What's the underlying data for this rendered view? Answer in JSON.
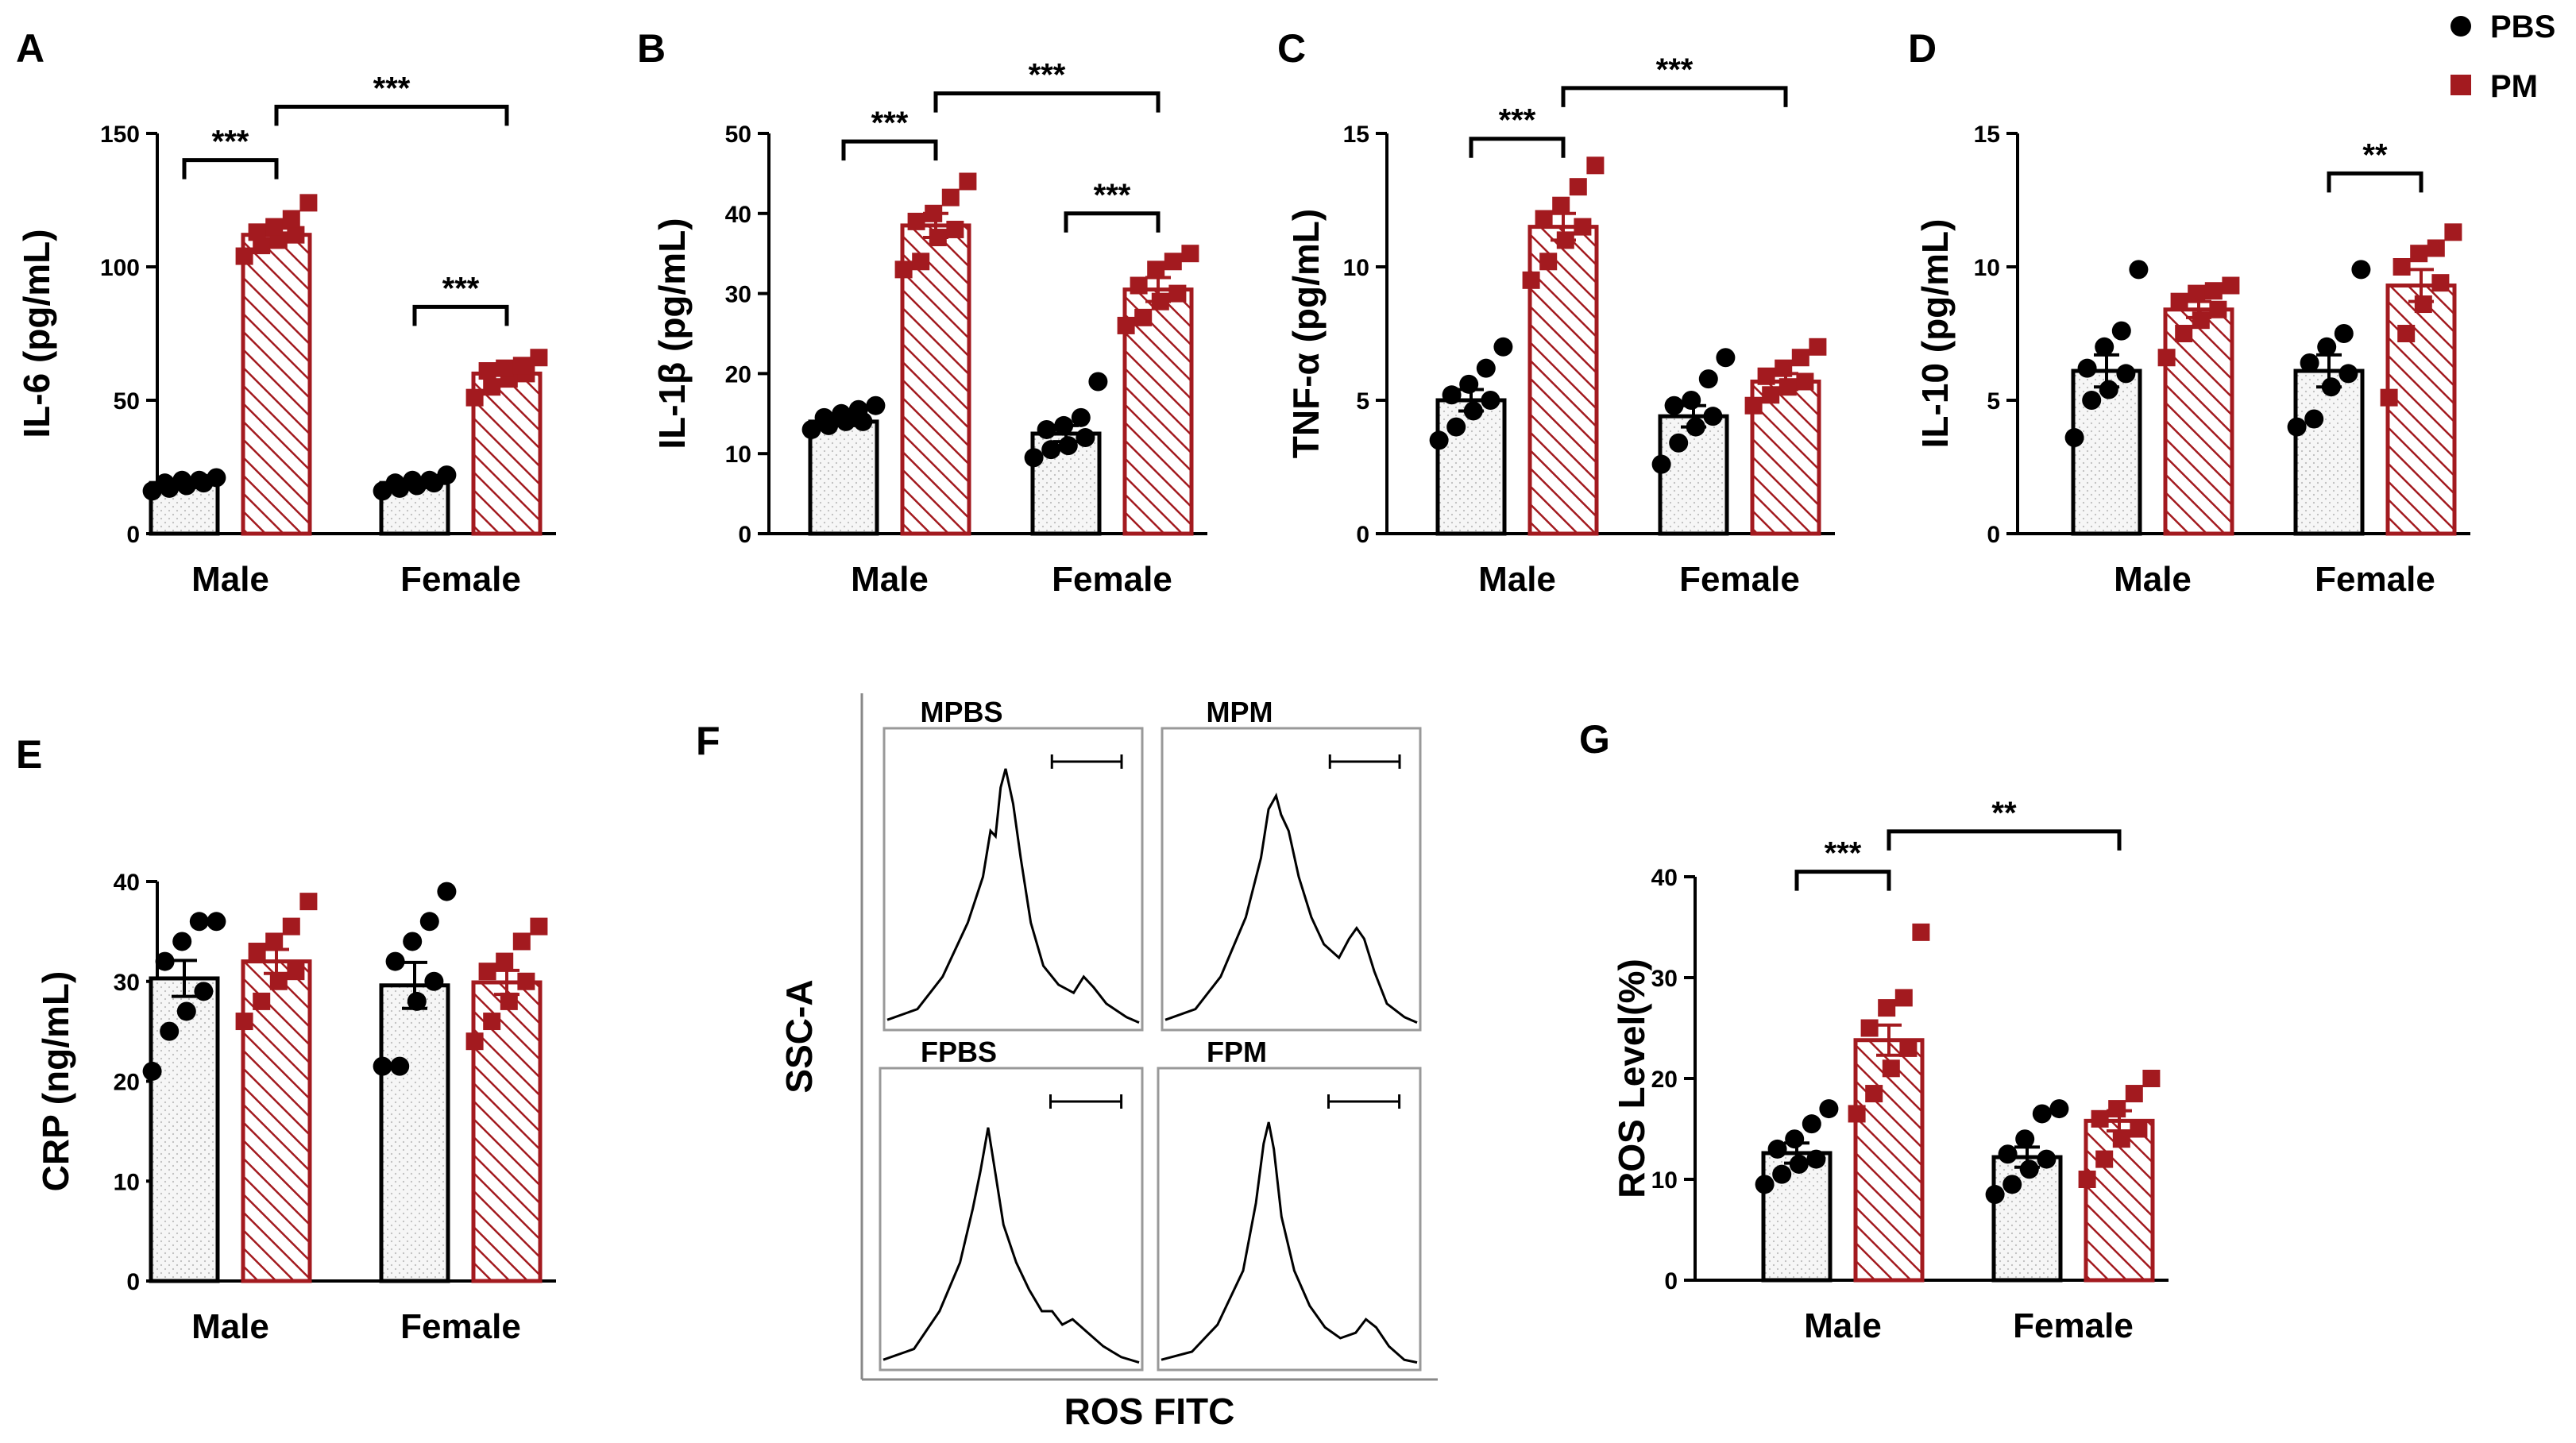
{
  "colors": {
    "pbs": "#000000",
    "pm": "#a31a1f",
    "pbs_fill": "#f2f2f2",
    "pm_hatch": "#a31a1f"
  },
  "legend": {
    "pbs": "PBS",
    "pm": "PM"
  },
  "chart_data": [
    {
      "id": "A",
      "panel": "A",
      "type": "bar",
      "ylabel": "IL-6 (pg/mL)",
      "ylim": [
        0,
        150
      ],
      "yticks": [
        0,
        50,
        100,
        150
      ],
      "categories": [
        "Male",
        "Female"
      ],
      "series": [
        {
          "name": "PBS",
          "values": [
            19,
            19
          ],
          "sem": [
            1,
            1
          ],
          "points": [
            [
              16,
              17,
              18,
              19,
              19,
              20,
              20,
              21
            ],
            [
              16,
              17,
              18,
              19,
              19,
              20,
              20,
              22
            ]
          ]
        },
        {
          "name": "PM",
          "values": [
            112,
            60
          ],
          "sem": [
            2.5,
            2.5
          ],
          "points": [
            [
              104,
              108,
              110,
              112,
              113,
              115,
              118,
              124
            ],
            [
              51,
              55,
              58,
              60,
              61,
              62,
              63,
              66
            ]
          ]
        }
      ],
      "significance": [
        {
          "from": [
            0,
            0
          ],
          "to": [
            0,
            1
          ],
          "label": "***",
          "y": 140
        },
        {
          "from": [
            1,
            0
          ],
          "to": [
            1,
            1
          ],
          "label": "***",
          "y": 85
        },
        {
          "from": [
            0,
            1
          ],
          "to": [
            1,
            1
          ],
          "label": "***",
          "y": 160
        }
      ]
    },
    {
      "id": "B",
      "panel": "B",
      "type": "bar",
      "ylabel": "IL-1β (pg/mL)",
      "ylim": [
        0,
        50
      ],
      "yticks": [
        0,
        10,
        20,
        30,
        40,
        50
      ],
      "categories": [
        "Male",
        "Female"
      ],
      "series": [
        {
          "name": "PBS",
          "values": [
            14,
            12.5
          ],
          "sem": [
            0.5,
            1.0
          ],
          "points": [
            [
              13,
              13.5,
              14,
              14,
              14.5,
              15,
              15.5,
              16
            ],
            [
              9.5,
              10.5,
              11,
              12,
              13,
              13.5,
              14.5,
              19
            ]
          ]
        },
        {
          "name": "PM",
          "values": [
            38.5,
            30.5
          ],
          "sem": [
            1.5,
            1.5
          ],
          "points": [
            [
              33,
              34,
              37,
              38,
              39,
              40,
              42,
              44
            ],
            [
              26,
              27,
              29,
              30,
              31,
              33,
              34,
              35
            ]
          ]
        }
      ],
      "significance": [
        {
          "from": [
            0,
            0
          ],
          "to": [
            0,
            1
          ],
          "label": "***",
          "y": 49
        },
        {
          "from": [
            1,
            0
          ],
          "to": [
            1,
            1
          ],
          "label": "***",
          "y": 40
        },
        {
          "from": [
            0,
            1
          ],
          "to": [
            1,
            1
          ],
          "label": "***",
          "y": 55
        }
      ]
    },
    {
      "id": "C",
      "panel": "C",
      "type": "bar",
      "ylabel": "TNF-α (pg/mL)",
      "ylim": [
        0,
        15
      ],
      "yticks": [
        0,
        5,
        10,
        15
      ],
      "categories": [
        "Male",
        "Female"
      ],
      "series": [
        {
          "name": "PBS",
          "values": [
            5.0,
            4.4
          ],
          "sem": [
            0.4,
            0.4
          ],
          "points": [
            [
              3.5,
              4.0,
              4.6,
              5.0,
              5.2,
              5.6,
              6.2,
              7.0
            ],
            [
              2.6,
              3.4,
              4.0,
              4.4,
              4.8,
              5.0,
              5.8,
              6.6
            ]
          ]
        },
        {
          "name": "PM",
          "values": [
            11.5,
            5.7
          ],
          "sem": [
            0.5,
            0.3
          ],
          "points": [
            [
              9.5,
              10.2,
              11.0,
              11.5,
              11.8,
              12.3,
              13.0,
              13.8
            ],
            [
              4.8,
              5.2,
              5.5,
              5.7,
              5.9,
              6.2,
              6.6,
              7.0
            ]
          ]
        }
      ],
      "significance": [
        {
          "from": [
            0,
            0
          ],
          "to": [
            0,
            1
          ],
          "label": "***",
          "y": 14.8
        },
        {
          "from": [
            0,
            1
          ],
          "to": [
            1,
            1
          ],
          "label": "***",
          "y": 16.7
        }
      ]
    },
    {
      "id": "D",
      "panel": "D",
      "type": "bar",
      "ylabel": "IL-10 (pg/mL)",
      "ylim": [
        0,
        15
      ],
      "yticks": [
        0,
        5,
        10,
        15
      ],
      "categories": [
        "Male",
        "Female"
      ],
      "series": [
        {
          "name": "PBS",
          "values": [
            6.1,
            6.1
          ],
          "sem": [
            0.6,
            0.6
          ],
          "points": [
            [
              3.6,
              5.0,
              5.4,
              6.0,
              6.2,
              7.0,
              7.6,
              9.9
            ],
            [
              4.0,
              4.3,
              5.5,
              6.0,
              6.4,
              7.0,
              7.5,
              9.9
            ]
          ]
        },
        {
          "name": "PM",
          "values": [
            8.4,
            9.3
          ],
          "sem": [
            0.3,
            0.6
          ],
          "points": [
            [
              6.6,
              7.5,
              8.0,
              8.4,
              8.7,
              9.0,
              9.1,
              9.3
            ],
            [
              5.1,
              7.5,
              8.6,
              9.4,
              10.0,
              10.5,
              10.7,
              11.3
            ]
          ]
        }
      ],
      "significance": [
        {
          "from": [
            1,
            0
          ],
          "to": [
            1,
            1
          ],
          "label": "**",
          "y": 13.5
        }
      ]
    },
    {
      "id": "E",
      "panel": "E",
      "type": "bar",
      "ylabel": "CRP (ng/mL)",
      "ylim": [
        0,
        40
      ],
      "yticks": [
        0,
        10,
        20,
        30,
        40
      ],
      "categories": [
        "Male",
        "Female"
      ],
      "series": [
        {
          "name": "PBS",
          "values": [
            30.3,
            29.6
          ],
          "sem": [
            1.8,
            2.3
          ],
          "points": [
            [
              21,
              25,
              27,
              29,
              32,
              34,
              36,
              36
            ],
            [
              21.5,
              21.5,
              28,
              30,
              32,
              34,
              36,
              39
            ]
          ]
        },
        {
          "name": "PM",
          "values": [
            32,
            29.9
          ],
          "sem": [
            1.2,
            1.2
          ],
          "points": [
            [
              26,
              28,
              30,
              31,
              33,
              34,
              35.5,
              38
            ],
            [
              24,
              26,
              28,
              30,
              31,
              32,
              34,
              35.5
            ]
          ]
        }
      ],
      "significance": []
    },
    {
      "id": "G",
      "panel": "G",
      "type": "bar",
      "ylabel": "ROS Level(%)",
      "ylim": [
        0,
        40
      ],
      "yticks": [
        0,
        10,
        20,
        30,
        40
      ],
      "categories": [
        "Male",
        "Female"
      ],
      "series": [
        {
          "name": "PBS",
          "values": [
            12.6,
            12.2
          ],
          "sem": [
            1.0,
            1.0
          ],
          "points": [
            [
              9.5,
              10.5,
              11.5,
              12,
              13,
              14,
              15.5,
              17
            ],
            [
              8.5,
              9.5,
              11,
              12,
              12.5,
              14,
              16.5,
              17
            ]
          ]
        },
        {
          "name": "PM",
          "values": [
            23.8,
            15.8
          ],
          "sem": [
            1.5,
            1.0
          ],
          "points": [
            [
              16.5,
              18.5,
              21,
              23,
              25,
              27,
              28,
              34.5
            ],
            [
              10,
              12,
              14,
              15,
              16,
              17,
              18.5,
              20
            ]
          ]
        }
      ],
      "significance": [
        {
          "from": [
            0,
            0
          ],
          "to": [
            0,
            1
          ],
          "label": "***",
          "y": 40.5
        },
        {
          "from": [
            0,
            1
          ],
          "to": [
            1,
            1
          ],
          "label": "**",
          "y": 44.5
        }
      ]
    }
  ],
  "flow": {
    "panel": "F",
    "ylabel": "SSC-A",
    "xlabel": "ROS FITC",
    "subplots": [
      {
        "label": "MPBS",
        "profile": [
          [
            0,
            0.02
          ],
          [
            0.12,
            0.06
          ],
          [
            0.22,
            0.18
          ],
          [
            0.32,
            0.38
          ],
          [
            0.38,
            0.55
          ],
          [
            0.41,
            0.72
          ],
          [
            0.43,
            0.7
          ],
          [
            0.45,
            0.88
          ],
          [
            0.47,
            0.95
          ],
          [
            0.5,
            0.82
          ],
          [
            0.53,
            0.62
          ],
          [
            0.57,
            0.38
          ],
          [
            0.62,
            0.22
          ],
          [
            0.68,
            0.15
          ],
          [
            0.74,
            0.12
          ],
          [
            0.78,
            0.18
          ],
          [
            0.82,
            0.14
          ],
          [
            0.87,
            0.08
          ],
          [
            0.95,
            0.03
          ],
          [
            1,
            0.01
          ]
        ]
      },
      {
        "label": "MPM",
        "profile": [
          [
            0,
            0.02
          ],
          [
            0.12,
            0.06
          ],
          [
            0.22,
            0.18
          ],
          [
            0.32,
            0.4
          ],
          [
            0.38,
            0.62
          ],
          [
            0.41,
            0.8
          ],
          [
            0.44,
            0.85
          ],
          [
            0.46,
            0.78
          ],
          [
            0.49,
            0.72
          ],
          [
            0.53,
            0.55
          ],
          [
            0.58,
            0.4
          ],
          [
            0.63,
            0.3
          ],
          [
            0.69,
            0.25
          ],
          [
            0.73,
            0.32
          ],
          [
            0.76,
            0.36
          ],
          [
            0.79,
            0.32
          ],
          [
            0.83,
            0.2
          ],
          [
            0.88,
            0.08
          ],
          [
            0.95,
            0.03
          ],
          [
            1,
            0.01
          ]
        ]
      },
      {
        "label": "FPBS",
        "profile": [
          [
            0,
            0.02
          ],
          [
            0.12,
            0.06
          ],
          [
            0.22,
            0.2
          ],
          [
            0.3,
            0.38
          ],
          [
            0.35,
            0.58
          ],
          [
            0.38,
            0.72
          ],
          [
            0.41,
            0.88
          ],
          [
            0.44,
            0.7
          ],
          [
            0.47,
            0.52
          ],
          [
            0.52,
            0.38
          ],
          [
            0.57,
            0.28
          ],
          [
            0.62,
            0.2
          ],
          [
            0.66,
            0.2
          ],
          [
            0.7,
            0.15
          ],
          [
            0.74,
            0.17
          ],
          [
            0.8,
            0.12
          ],
          [
            0.86,
            0.07
          ],
          [
            0.93,
            0.03
          ],
          [
            1,
            0.01
          ]
        ]
      },
      {
        "label": "FPM",
        "profile": [
          [
            0,
            0.02
          ],
          [
            0.12,
            0.05
          ],
          [
            0.22,
            0.15
          ],
          [
            0.32,
            0.35
          ],
          [
            0.37,
            0.6
          ],
          [
            0.4,
            0.82
          ],
          [
            0.42,
            0.9
          ],
          [
            0.44,
            0.8
          ],
          [
            0.47,
            0.55
          ],
          [
            0.52,
            0.35
          ],
          [
            0.58,
            0.22
          ],
          [
            0.64,
            0.14
          ],
          [
            0.7,
            0.1
          ],
          [
            0.76,
            0.12
          ],
          [
            0.8,
            0.17
          ],
          [
            0.84,
            0.14
          ],
          [
            0.89,
            0.07
          ],
          [
            0.95,
            0.02
          ],
          [
            1,
            0.01
          ]
        ]
      }
    ]
  }
}
